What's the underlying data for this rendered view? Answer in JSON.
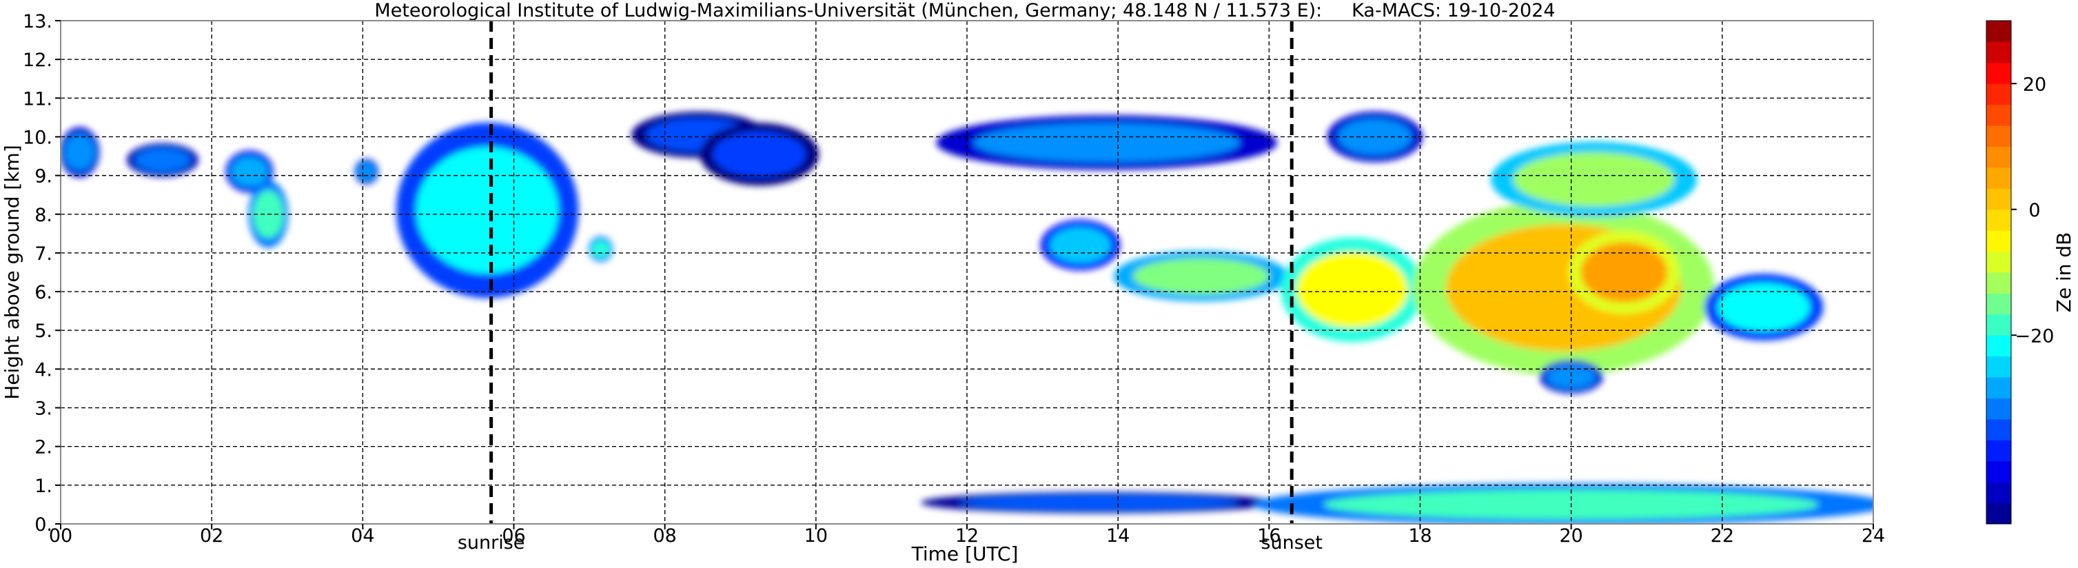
{
  "chart_data": {
    "type": "heatmap",
    "title": "Meteorological Institute of Ludwig-Maximilians-Universität (München, Germany; 48.148 N / 11.573 E):     Ka-MACS: 19-10-2024",
    "xlabel": "Time [UTC]",
    "ylabel": "Height above ground [km]",
    "xlim": [
      0,
      24
    ],
    "ylim": [
      0,
      13
    ],
    "x_ticks": [
      "00",
      "02",
      "04",
      "06",
      "08",
      "10",
      "12",
      "14",
      "16",
      "18",
      "20",
      "22",
      "24"
    ],
    "y_ticks": [
      "0.",
      "1.",
      "2.",
      "3.",
      "4.",
      "5.",
      "6.",
      "7.",
      "8.",
      "9.",
      "10.",
      "11.",
      "12.",
      "13."
    ],
    "grid": true,
    "grid_style": "dashed",
    "annotations": [
      {
        "label": "sunrise",
        "time": 5.7
      },
      {
        "label": "sunset",
        "time": 16.3
      }
    ],
    "colorbar": {
      "label": "Ze in dB",
      "range": [
        -50,
        30
      ],
      "ticks": [
        -20,
        0,
        20
      ],
      "tick_labels": [
        "−20",
        "0",
        "20"
      ]
    },
    "reflectivity_regions": [
      {
        "t0": 0.0,
        "t1": 0.5,
        "h0": 9.0,
        "h1": 10.2,
        "ze": -30
      },
      {
        "t0": 0.9,
        "t1": 1.8,
        "h0": 9.0,
        "h1": 9.8,
        "ze": -32
      },
      {
        "t0": 2.2,
        "t1": 2.8,
        "h0": 8.6,
        "h1": 9.6,
        "ze": -28
      },
      {
        "t0": 2.5,
        "t1": 3.0,
        "h0": 7.2,
        "h1": 8.8,
        "ze": -18
      },
      {
        "t0": 3.9,
        "t1": 4.2,
        "h0": 8.8,
        "h1": 9.4,
        "ze": -30
      },
      {
        "t0": 4.5,
        "t1": 6.8,
        "h0": 6.0,
        "h1": 10.2,
        "ze": -22
      },
      {
        "t0": 7.0,
        "t1": 7.3,
        "h0": 6.8,
        "h1": 7.4,
        "ze": -20
      },
      {
        "t0": 7.6,
        "t1": 9.3,
        "h0": 9.5,
        "h1": 10.6,
        "ze": -35
      },
      {
        "t0": 8.5,
        "t1": 10.0,
        "h0": 8.8,
        "h1": 10.3,
        "ze": -36
      },
      {
        "t0": 11.7,
        "t1": 16.0,
        "h0": 9.2,
        "h1": 10.5,
        "ze": -30
      },
      {
        "t0": 16.8,
        "t1": 18.0,
        "h0": 9.4,
        "h1": 10.6,
        "ze": -30
      },
      {
        "t0": 13.0,
        "t1": 14.0,
        "h0": 6.6,
        "h1": 7.8,
        "ze": -26
      },
      {
        "t0": 14.0,
        "t1": 16.2,
        "h0": 5.8,
        "h1": 7.0,
        "ze": -14
      },
      {
        "t0": 16.2,
        "t1": 18.0,
        "h0": 4.8,
        "h1": 7.3,
        "ze": -6
      },
      {
        "t0": 18.0,
        "t1": 21.8,
        "h0": 4.0,
        "h1": 8.2,
        "ze": 2
      },
      {
        "t0": 19.0,
        "t1": 21.6,
        "h0": 8.0,
        "h1": 9.8,
        "ze": -12
      },
      {
        "t0": 20.0,
        "t1": 21.4,
        "h0": 5.5,
        "h1": 7.5,
        "ze": 6
      },
      {
        "t0": 21.8,
        "t1": 23.3,
        "h0": 4.8,
        "h1": 6.4,
        "ze": -22
      },
      {
        "t0": 19.6,
        "t1": 20.4,
        "h0": 3.4,
        "h1": 4.2,
        "ze": -30
      },
      {
        "t0": 11.5,
        "t1": 16.0,
        "h0": 0.3,
        "h1": 0.8,
        "ze": -34
      },
      {
        "t0": 16.0,
        "t1": 24.0,
        "h0": 0.0,
        "h1": 1.0,
        "ze": -18
      }
    ]
  }
}
